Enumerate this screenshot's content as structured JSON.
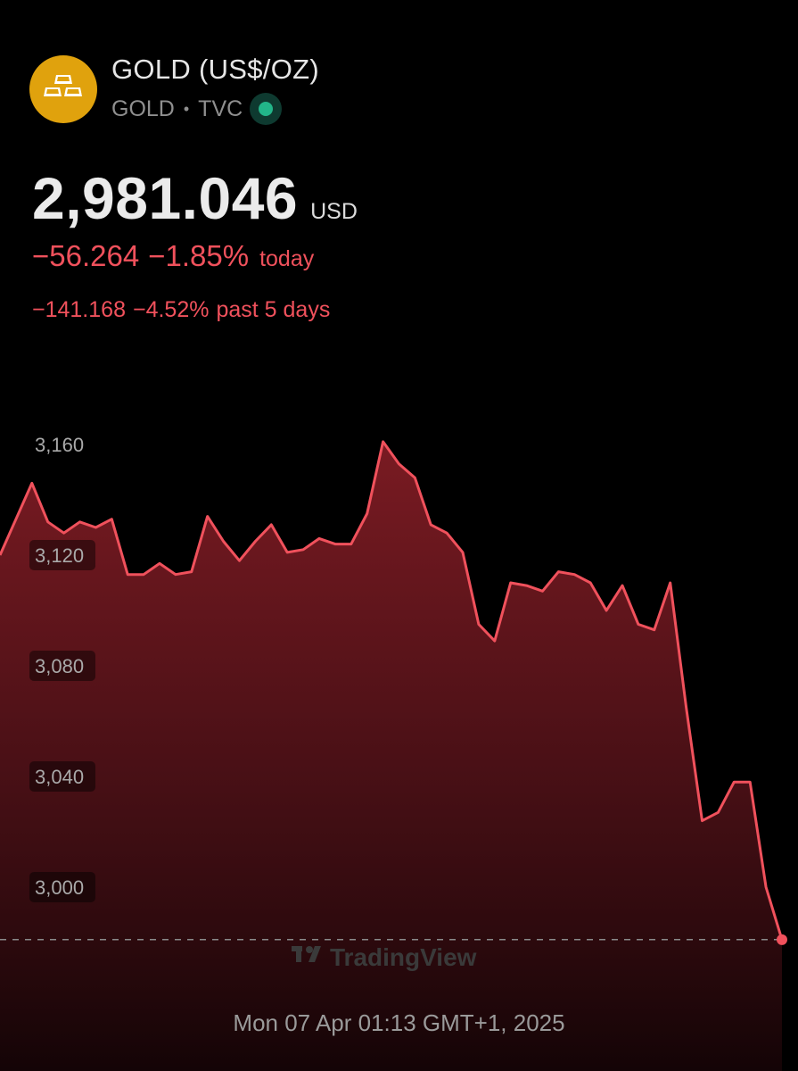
{
  "symbol": {
    "title": "GOLD (US$/OZ)",
    "ticker": "GOLD",
    "separator": "•",
    "exchange": "TVC",
    "logo_icon": "gold-bars-icon",
    "status_icon": "market-open-dot-icon"
  },
  "quote": {
    "price": "2,981.046",
    "currency": "USD",
    "change_abs": "−56.264",
    "change_pct": "−1.85%",
    "change_label": "today",
    "change5_abs": "−141.168",
    "change5_pct": "−4.52%",
    "change5_label": "past 5 days"
  },
  "colors": {
    "accent_down": "#f0515c",
    "logo_bg": "#e0a20d",
    "status": "#22b589"
  },
  "watermark": "TradingView",
  "timestamp": "Mon 07 Apr 01:13 GMT+1, 2025",
  "chart_data": {
    "type": "area",
    "ylim": [
      2975,
      3165
    ],
    "y_ticks": [
      3000,
      3040,
      3080,
      3120,
      3160
    ],
    "y_tick_labels": [
      "3,000",
      "3,040",
      "3,080",
      "3,120",
      "3,160"
    ],
    "reference_line": 2981.046,
    "last_value": 2981.046,
    "values": [
      3120,
      3133,
      3146,
      3132,
      3128,
      3132,
      3130,
      3133,
      3113,
      3113,
      3117,
      3113,
      3114,
      3134,
      3125,
      3118,
      3125,
      3131,
      3121,
      3122,
      3126,
      3124,
      3124,
      3135,
      3161,
      3153,
      3148,
      3131,
      3128,
      3121,
      3095,
      3089,
      3110,
      3109,
      3107,
      3114,
      3113,
      3110,
      3100,
      3109,
      3095,
      3093,
      3110,
      3065,
      3024,
      3027,
      3038,
      3038,
      3000,
      2981
    ]
  }
}
